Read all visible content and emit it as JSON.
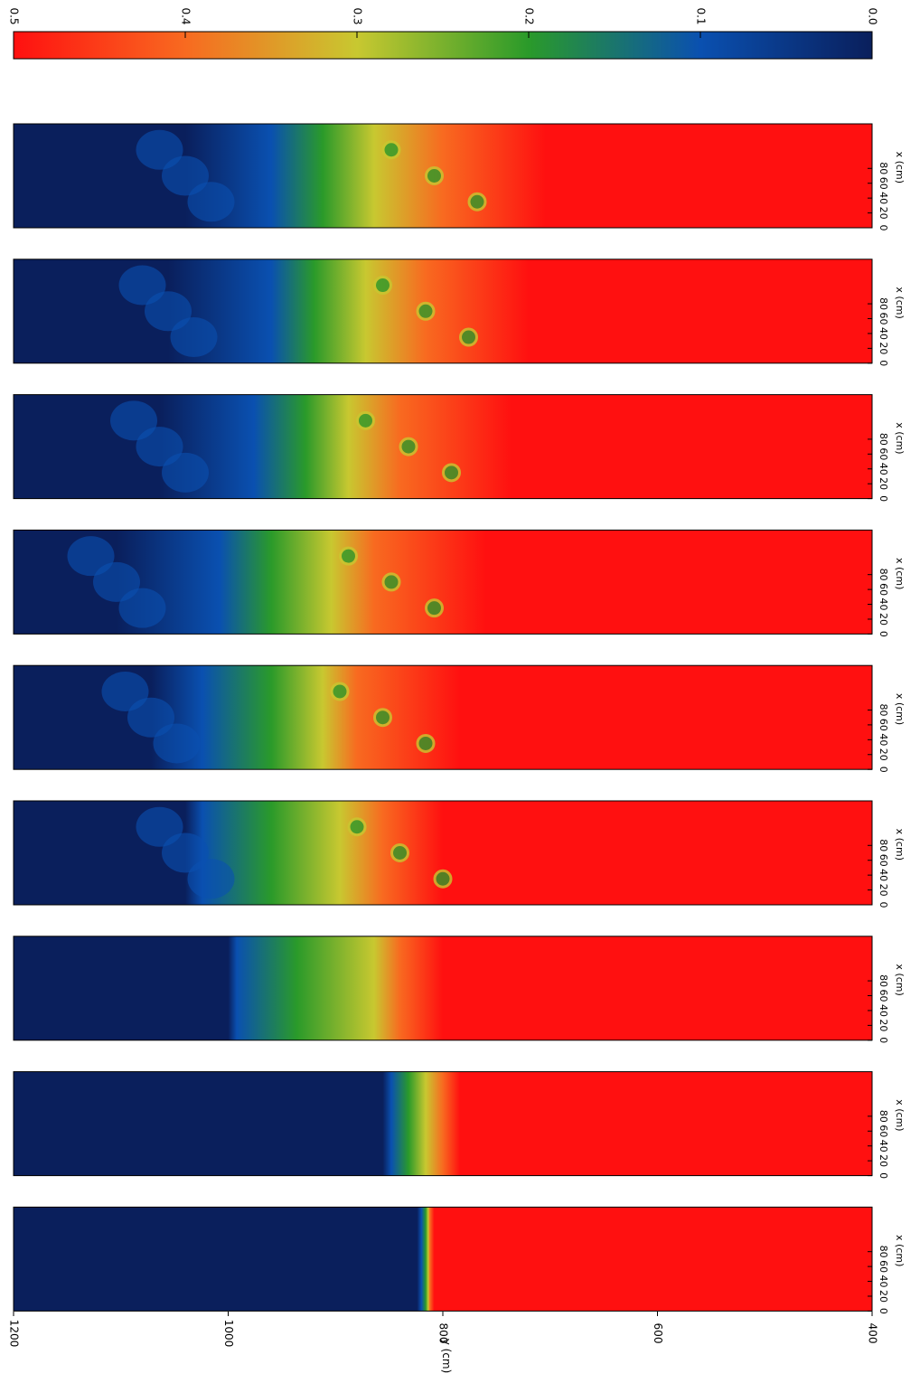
{
  "chart_data": {
    "type": "field-strips",
    "colorbar": {
      "lim": [
        0.5,
        0
      ],
      "ticks": [
        0.5,
        0.4,
        0.3,
        0.2,
        0.1,
        {
          "value": 0,
          "label": "0.0"
        }
      ]
    },
    "ylabel": "y (cm)",
    "ylim": [
      1200,
      400
    ],
    "yticks": [
      1200,
      1000,
      800,
      600,
      400
    ],
    "xlabel": "x (cm)",
    "xlim": [
      0,
      140
    ],
    "xticks": [
      0,
      20,
      40,
      60,
      80
    ],
    "panel_count": 9
  }
}
